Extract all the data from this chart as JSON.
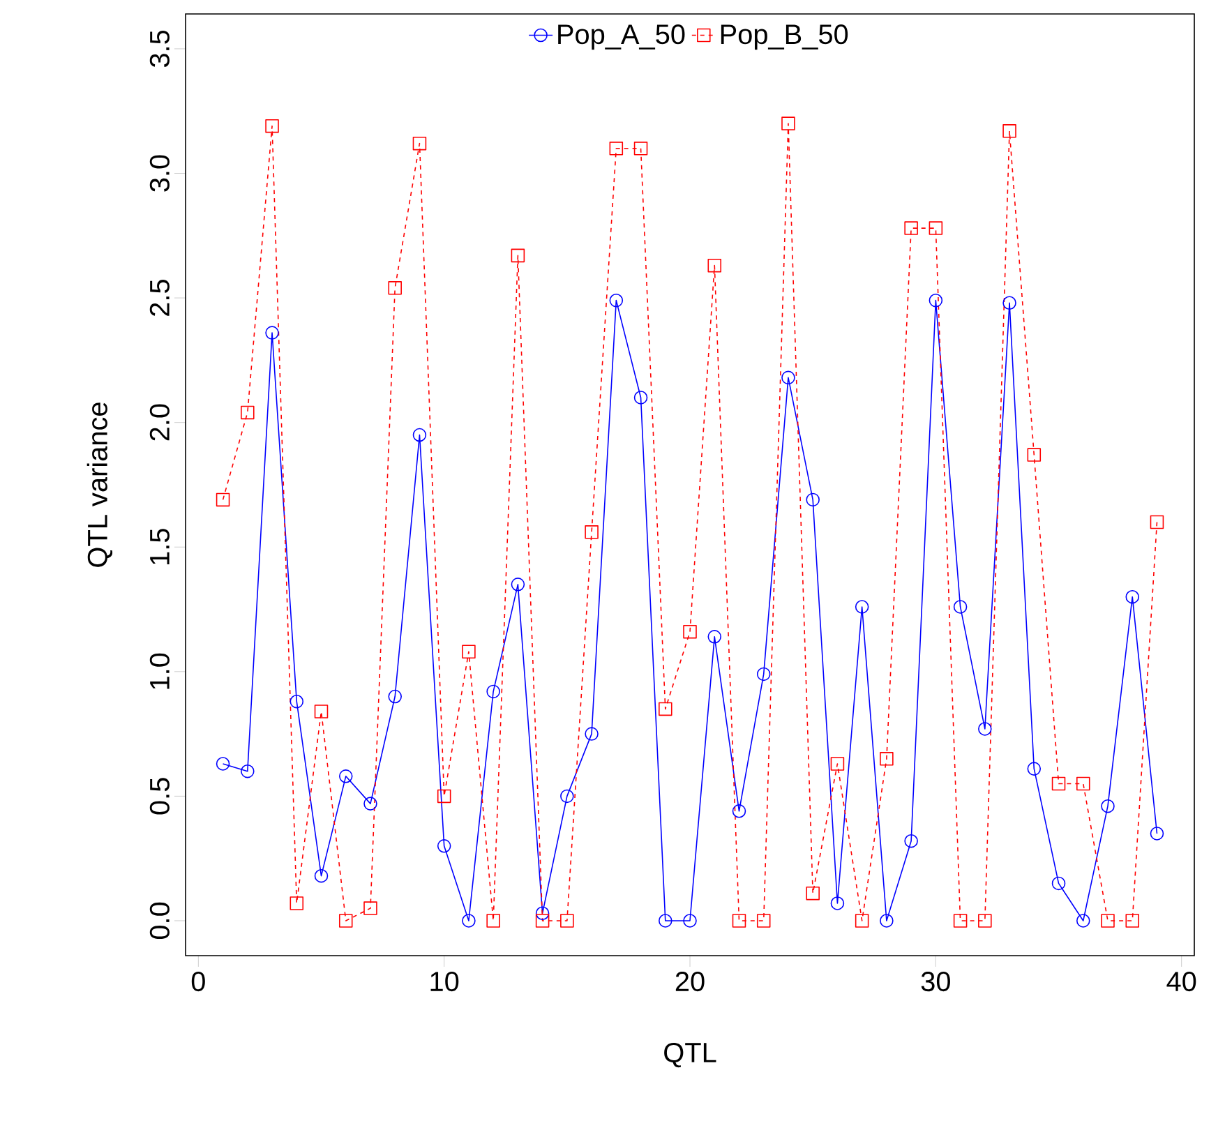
{
  "chart_data": {
    "type": "line",
    "xlabel": "QTL",
    "ylabel": "QTL variance",
    "x": [
      1,
      2,
      3,
      4,
      5,
      6,
      7,
      8,
      9,
      10,
      11,
      12,
      13,
      14,
      15,
      16,
      17,
      18,
      19,
      20,
      21,
      22,
      23,
      24,
      25,
      26,
      27,
      28,
      29,
      30,
      31,
      32,
      33,
      34,
      35,
      36,
      37,
      38,
      39
    ],
    "series": [
      {
        "name": "Pop_A_50",
        "color": "#0000ff",
        "marker": "circle",
        "line_style": "solid",
        "values": [
          0.63,
          0.6,
          2.36,
          0.88,
          0.18,
          0.58,
          0.47,
          0.9,
          1.95,
          0.3,
          0,
          0.92,
          1.35,
          0.03,
          0.5,
          0.75,
          2.49,
          2.1,
          0,
          0,
          1.14,
          0.44,
          0.99,
          2.18,
          1.69,
          0.07,
          1.26,
          0,
          0.32,
          2.49,
          1.26,
          0.77,
          2.48,
          0.61,
          0.15,
          0,
          0.46,
          1.3,
          0.35
        ]
      },
      {
        "name": "Pop_B_50",
        "color": "#ff0000",
        "marker": "square",
        "line_style": "dashed",
        "values": [
          1.69,
          2.04,
          3.19,
          0.07,
          0.84,
          0,
          0.05,
          2.54,
          3.12,
          0.5,
          1.08,
          0,
          2.67,
          0,
          0,
          1.56,
          3.1,
          3.1,
          0.85,
          1.16,
          2.63,
          0,
          0,
          3.2,
          0.11,
          0.63,
          0,
          0.65,
          2.78,
          2.78,
          0,
          0,
          3.17,
          1.87,
          0.55,
          0.55,
          0,
          0,
          1.6
        ]
      }
    ],
    "xlim": [
      -0.52,
      40.52
    ],
    "ylim": [
      -0.14,
      3.64
    ],
    "xticks": [
      0,
      10,
      20,
      30,
      40
    ],
    "yticks": [
      {
        "value": 0,
        "label": "0.0"
      },
      {
        "value": 0.5,
        "label": "0.5"
      },
      {
        "value": 1,
        "label": "1.0"
      },
      {
        "value": 1.5,
        "label": "1.5"
      },
      {
        "value": 2,
        "label": "2.0"
      },
      {
        "value": 2.5,
        "label": "2.5"
      },
      {
        "value": 3,
        "label": "3.0"
      },
      {
        "value": 3.5,
        "label": "3.5"
      }
    ],
    "grid": false,
    "legend": "top"
  }
}
